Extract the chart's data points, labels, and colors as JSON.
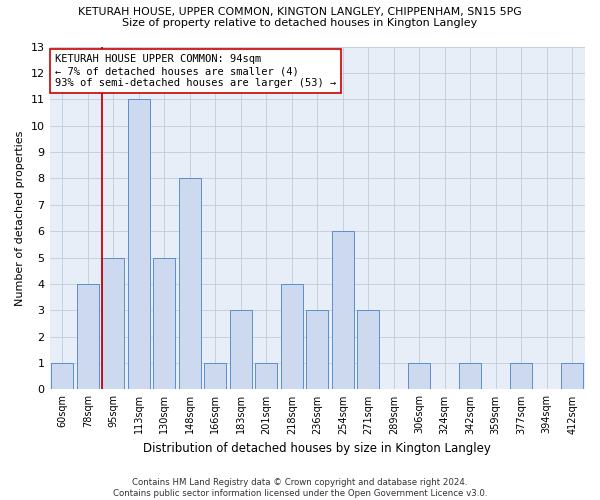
{
  "title": "KETURAH HOUSE, UPPER COMMON, KINGTON LANGLEY, CHIPPENHAM, SN15 5PG",
  "subtitle": "Size of property relative to detached houses in Kington Langley",
  "xlabel": "Distribution of detached houses by size in Kington Langley",
  "ylabel": "Number of detached properties",
  "categories": [
    "60sqm",
    "78sqm",
    "95sqm",
    "113sqm",
    "130sqm",
    "148sqm",
    "166sqm",
    "183sqm",
    "201sqm",
    "218sqm",
    "236sqm",
    "254sqm",
    "271sqm",
    "289sqm",
    "306sqm",
    "324sqm",
    "342sqm",
    "359sqm",
    "377sqm",
    "394sqm",
    "412sqm"
  ],
  "values": [
    1,
    4,
    5,
    11,
    5,
    8,
    1,
    3,
    1,
    4,
    3,
    6,
    3,
    0,
    1,
    0,
    1,
    0,
    1,
    0,
    1
  ],
  "bar_color": "#cdd9ee",
  "bar_edge_color": "#5b8fcc",
  "vline_index": 2,
  "vline_color": "#cc0000",
  "ylim": [
    0,
    13
  ],
  "yticks": [
    0,
    1,
    2,
    3,
    4,
    5,
    6,
    7,
    8,
    9,
    10,
    11,
    12,
    13
  ],
  "annotation_text": "KETURAH HOUSE UPPER COMMON: 94sqm\n← 7% of detached houses are smaller (4)\n93% of semi-detached houses are larger (53) →",
  "annotation_box_color": "#ffffff",
  "annotation_box_edge": "#cc0000",
  "footer_line1": "Contains HM Land Registry data © Crown copyright and database right 2024.",
  "footer_line2": "Contains public sector information licensed under the Open Government Licence v3.0.",
  "grid_color": "#c0ccdc",
  "background_color": "#e8eef8"
}
